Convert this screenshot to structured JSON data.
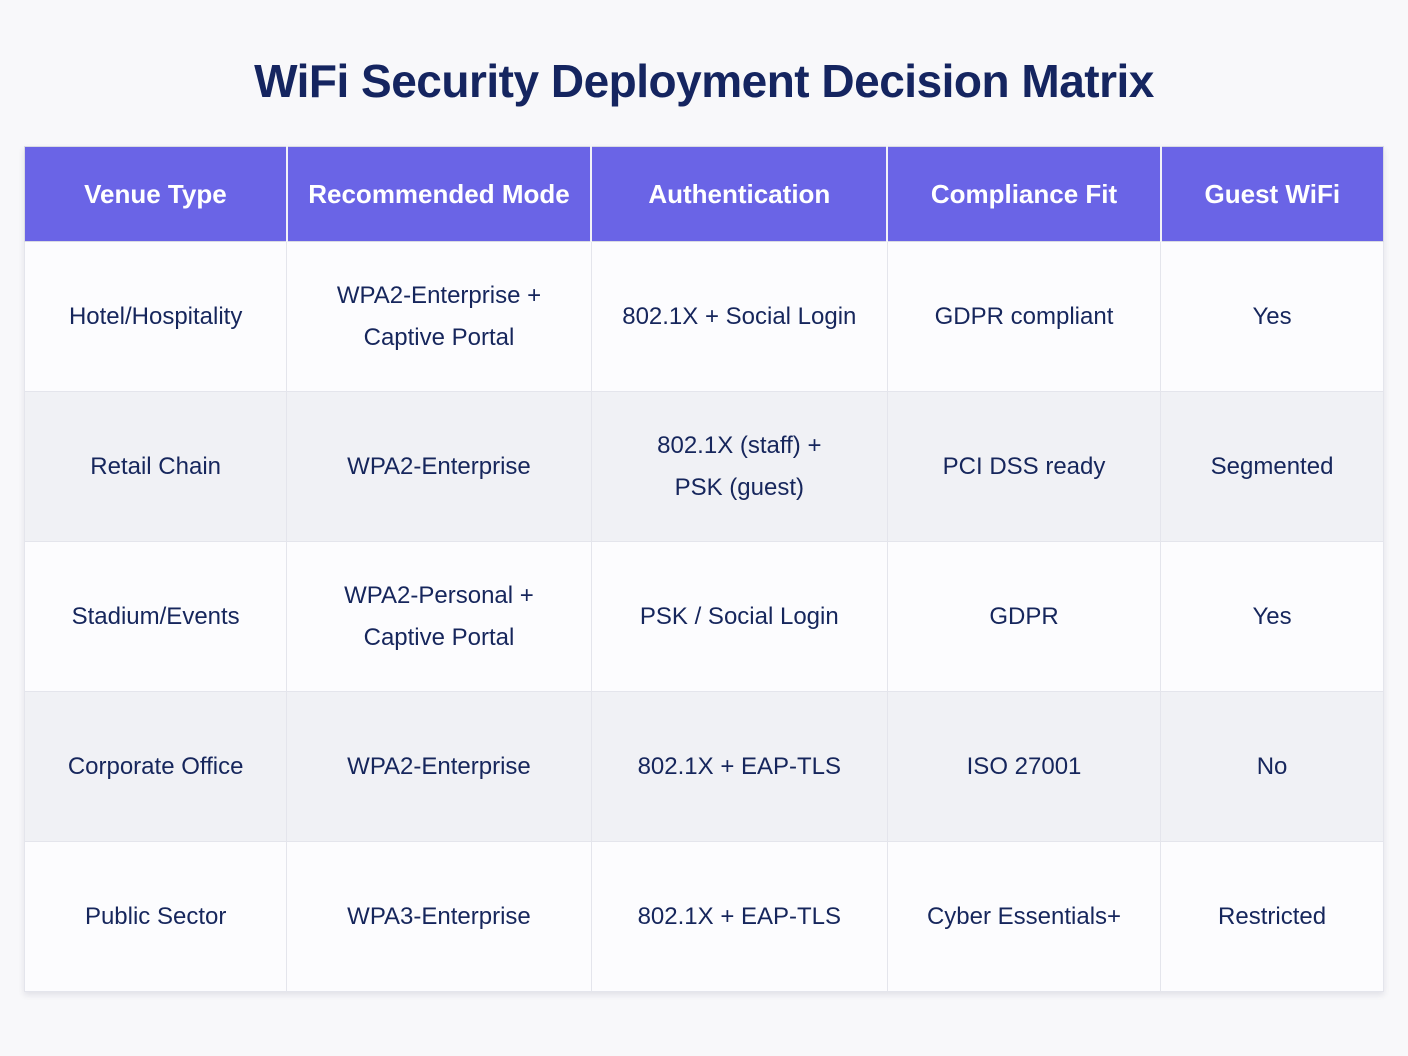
{
  "title": "WiFi Security Deployment Decision Matrix",
  "colors": {
    "header_bg": "#6A64E6",
    "header_text": "#FFFFFF",
    "title_text": "#152560",
    "body_text": "#16265C",
    "row_light": "#FCFCFE",
    "row_shaded": "#F0F1F5",
    "grid_line": "#E4E5EC",
    "page_bg": "#F8F8FA"
  },
  "chart_data": {
    "type": "table",
    "title": "WiFi Security Deployment Decision Matrix",
    "columns": [
      "Venue Type",
      "Recommended Mode",
      "Authentication",
      "Compliance Fit",
      "Guest WiFi"
    ],
    "rows": [
      [
        "Hotel/Hospitality",
        "WPA2-Enterprise +\nCaptive Portal",
        "802.1X + Social Login",
        "GDPR compliant",
        "Yes"
      ],
      [
        "Retail Chain",
        "WPA2-Enterprise",
        "802.1X (staff) +\nPSK (guest)",
        "PCI DSS ready",
        "Segmented"
      ],
      [
        "Stadium/Events",
        "WPA2-Personal +\nCaptive Portal",
        "PSK / Social Login",
        "GDPR",
        "Yes"
      ],
      [
        "Corporate Office",
        "WPA2-Enterprise",
        "802.1X + EAP-TLS",
        "ISO 27001",
        "No"
      ],
      [
        "Public Sector",
        "WPA3-Enterprise",
        "802.1X + EAP-TLS",
        "Cyber Essentials+",
        "Restricted"
      ]
    ],
    "row_striping": [
      "light",
      "shaded",
      "light",
      "shaded",
      "light"
    ],
    "legend_position": "none",
    "grid": true
  }
}
